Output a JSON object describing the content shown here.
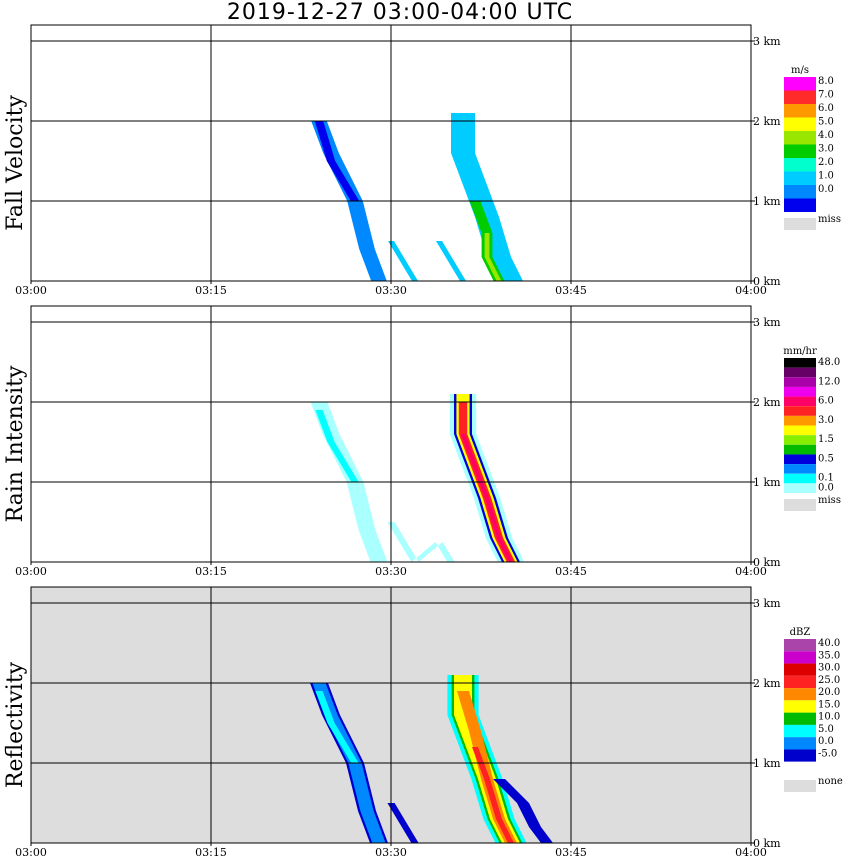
{
  "title": "2019-12-27   03:00-04:00 UTC",
  "x_ticks": [
    "03:00",
    "03:15",
    "03:30",
    "03:45",
    "04:00"
  ],
  "y_ticks": [
    "0 km",
    "1 km",
    "2 km",
    "3 km"
  ],
  "colors": {
    "none_gray": "#dddddd",
    "grid": "#000000"
  },
  "chart_data": [
    {
      "type": "heatmap",
      "name": "fall-velocity",
      "ylabel": "Fall Velocity",
      "unit": "m/s",
      "xlim": [
        "03:00",
        "04:00"
      ],
      "ylim_km": [
        0,
        3.2
      ],
      "background": "#ffffff",
      "legend": [
        {
          "label": "8.0",
          "color": "#ff00ff"
        },
        {
          "label": "7.0",
          "color": "#ff2a2a"
        },
        {
          "label": "6.0",
          "color": "#ff9900"
        },
        {
          "label": "5.0",
          "color": "#ffff00"
        },
        {
          "label": "4.0",
          "color": "#99e600"
        },
        {
          "label": "3.0",
          "color": "#00cc00"
        },
        {
          "label": "2.0",
          "color": "#00ffcc"
        },
        {
          "label": "1.0",
          "color": "#00ccff"
        },
        {
          "label": "0.0",
          "color": "#0088ff"
        },
        {
          "label": "",
          "color": "#0000ee"
        }
      ],
      "miss_label": "miss",
      "echoes": [
        {
          "t": [
            "03:24",
            "03:25",
            "03:27",
            "03:28",
            "03:29"
          ],
          "z": [
            2.0,
            1.6,
            1.0,
            0.4,
            0.0
          ],
          "width_min": 1.3,
          "color": "#0088ff"
        },
        {
          "t": [
            "03:24",
            "03:25",
            "03:27"
          ],
          "z": [
            2.0,
            1.5,
            1.0
          ],
          "width_min": 0.7,
          "color": "#0000ee"
        },
        {
          "t": [
            "03:36",
            "03:36",
            "03:38",
            "03:39",
            "03:40"
          ],
          "z": [
            2.1,
            1.6,
            0.8,
            0.3,
            0.0
          ],
          "width_min": 2.0,
          "color": "#00ccff"
        },
        {
          "t": [
            "03:37",
            "03:38",
            "03:38",
            "03:39"
          ],
          "z": [
            1.0,
            0.6,
            0.3,
            0.0
          ],
          "width_min": 0.9,
          "color": "#00cc00"
        },
        {
          "t": [
            "03:38",
            "03:38",
            "03:39"
          ],
          "z": [
            0.6,
            0.3,
            0.0
          ],
          "width_min": 0.4,
          "color": "#99e600"
        },
        {
          "t": [
            "03:34",
            "03:35",
            "03:36"
          ],
          "z": [
            0.5,
            0.25,
            0.0
          ],
          "width_min": 0.5,
          "color": "#00ccff"
        },
        {
          "t": [
            "03:30",
            "03:31",
            "03:32"
          ],
          "z": [
            0.5,
            0.25,
            0.0
          ],
          "width_min": 0.5,
          "color": "#00ccff"
        }
      ]
    },
    {
      "type": "heatmap",
      "name": "rain-intensity",
      "ylabel": "Rain Intensity",
      "unit": "mm/hr",
      "xlim": [
        "03:00",
        "04:00"
      ],
      "ylim_km": [
        0,
        3.2
      ],
      "background": "#ffffff",
      "legend": [
        {
          "label": "48.0",
          "color": "#000000"
        },
        {
          "label": "",
          "color": "#660066"
        },
        {
          "label": "12.0",
          "color": "#aa00aa"
        },
        {
          "label": "",
          "color": "#ee00ee"
        },
        {
          "label": "6.0",
          "color": "#ff0066"
        },
        {
          "label": "",
          "color": "#ff2222"
        },
        {
          "label": "3.0",
          "color": "#ff9900"
        },
        {
          "label": "",
          "color": "#ffff00"
        },
        {
          "label": "1.5",
          "color": "#88ee00"
        },
        {
          "label": "",
          "color": "#00bb00"
        },
        {
          "label": "0.5",
          "color": "#0000dd"
        },
        {
          "label": "",
          "color": "#0088ff"
        },
        {
          "label": "0.1",
          "color": "#00ffff"
        },
        {
          "label": "0.0",
          "color": "#aaffff"
        }
      ],
      "miss_label": "miss",
      "echoes": [
        {
          "t": [
            "03:24",
            "03:25",
            "03:27",
            "03:28",
            "03:29"
          ],
          "z": [
            2.0,
            1.6,
            1.0,
            0.4,
            0.0
          ],
          "width_min": 1.4,
          "color": "#aaffff"
        },
        {
          "t": [
            "03:24",
            "03:25",
            "03:27"
          ],
          "z": [
            1.9,
            1.5,
            1.0
          ],
          "width_min": 0.6,
          "color": "#00ffff"
        },
        {
          "t": [
            "03:36",
            "03:36",
            "03:38",
            "03:39",
            "03:40"
          ],
          "z": [
            2.1,
            1.6,
            0.8,
            0.3,
            0.0
          ],
          "width_min": 2.2,
          "color": "#aaffff"
        },
        {
          "t": [
            "03:36",
            "03:36",
            "03:38",
            "03:39",
            "03:40"
          ],
          "z": [
            2.1,
            1.6,
            0.8,
            0.3,
            0.0
          ],
          "width_min": 1.5,
          "color": "#0000dd"
        },
        {
          "t": [
            "03:36",
            "03:36",
            "03:38",
            "03:39",
            "03:40"
          ],
          "z": [
            2.1,
            1.6,
            0.8,
            0.3,
            0.0
          ],
          "width_min": 1.1,
          "color": "#ffff00"
        },
        {
          "t": [
            "03:36",
            "03:36",
            "03:38",
            "03:39",
            "03:40"
          ],
          "z": [
            2.0,
            1.6,
            0.8,
            0.3,
            0.0
          ],
          "width_min": 0.7,
          "color": "#ff2222"
        },
        {
          "t": [
            "03:36",
            "03:37",
            "03:38",
            "03:39",
            "03:40"
          ],
          "z": [
            1.6,
            1.2,
            0.8,
            0.3,
            0.0
          ],
          "width_min": 0.35,
          "color": "#ff0066"
        },
        {
          "t": [
            "03:30",
            "03:31",
            "03:32",
            "03:34",
            "03:35"
          ],
          "z": [
            0.5,
            0.25,
            0.0,
            0.25,
            0.0
          ],
          "width_min": 0.6,
          "color": "#aaffff"
        }
      ]
    },
    {
      "type": "heatmap",
      "name": "reflectivity",
      "ylabel": "Reflectivity",
      "unit": "dBZ",
      "xlim": [
        "03:00",
        "04:00"
      ],
      "ylim_km": [
        0,
        3.2
      ],
      "background": "#dddddd",
      "legend": [
        {
          "label": "40.0",
          "color": "#aa44aa"
        },
        {
          "label": "35.0",
          "color": "#cc00cc"
        },
        {
          "label": "30.0",
          "color": "#dd0000"
        },
        {
          "label": "25.0",
          "color": "#ff2222"
        },
        {
          "label": "20.0",
          "color": "#ff8800"
        },
        {
          "label": "15.0",
          "color": "#ffff00"
        },
        {
          "label": "10.0",
          "color": "#00bb00"
        },
        {
          "label": "5.0",
          "color": "#00ffff"
        },
        {
          "label": "0.0",
          "color": "#0088ff"
        },
        {
          "label": "-5.0",
          "color": "#0000cc"
        },
        {
          "label": "",
          "color": "#ffffff"
        }
      ],
      "miss_label": "none",
      "echoes": [
        {
          "t": [
            "03:24",
            "03:25",
            "03:27",
            "03:28",
            "03:29"
          ],
          "z": [
            2.0,
            1.6,
            1.0,
            0.4,
            0.0
          ],
          "width_min": 1.5,
          "color": "#0000cc"
        },
        {
          "t": [
            "03:24",
            "03:25",
            "03:27",
            "03:28",
            "03:29"
          ],
          "z": [
            2.0,
            1.6,
            1.0,
            0.4,
            0.0
          ],
          "width_min": 1.1,
          "color": "#0088ff"
        },
        {
          "t": [
            "03:24",
            "03:25",
            "03:27"
          ],
          "z": [
            1.9,
            1.5,
            1.0
          ],
          "width_min": 0.6,
          "color": "#00ffff"
        },
        {
          "t": [
            "03:36",
            "03:36",
            "03:38",
            "03:39",
            "03:40"
          ],
          "z": [
            2.1,
            1.6,
            0.8,
            0.3,
            0.0
          ],
          "width_min": 2.6,
          "color": "#00ffff"
        },
        {
          "t": [
            "03:36",
            "03:36",
            "03:38",
            "03:39",
            "03:40"
          ],
          "z": [
            2.1,
            1.6,
            0.8,
            0.3,
            0.0
          ],
          "width_min": 1.9,
          "color": "#00bb00"
        },
        {
          "t": [
            "03:36",
            "03:36",
            "03:38",
            "03:39",
            "03:40"
          ],
          "z": [
            2.1,
            1.6,
            0.8,
            0.3,
            0.0
          ],
          "width_min": 1.5,
          "color": "#ffff00"
        },
        {
          "t": [
            "03:36",
            "03:37",
            "03:38",
            "03:39",
            "03:40"
          ],
          "z": [
            1.9,
            1.4,
            0.8,
            0.3,
            0.0
          ],
          "width_min": 1.0,
          "color": "#ff8800"
        },
        {
          "t": [
            "03:37",
            "03:38",
            "03:39",
            "03:40"
          ],
          "z": [
            1.2,
            0.8,
            0.3,
            0.0
          ],
          "width_min": 0.5,
          "color": "#ff2222"
        },
        {
          "t": [
            "03:30",
            "03:31",
            "03:32"
          ],
          "z": [
            0.5,
            0.25,
            0.0
          ],
          "width_min": 0.6,
          "color": "#0000cc"
        },
        {
          "t": [
            "03:39",
            "03:41",
            "03:42",
            "03:43"
          ],
          "z": [
            0.8,
            0.5,
            0.2,
            0.0
          ],
          "width_min": 1.0,
          "color": "#0000cc"
        }
      ]
    }
  ]
}
